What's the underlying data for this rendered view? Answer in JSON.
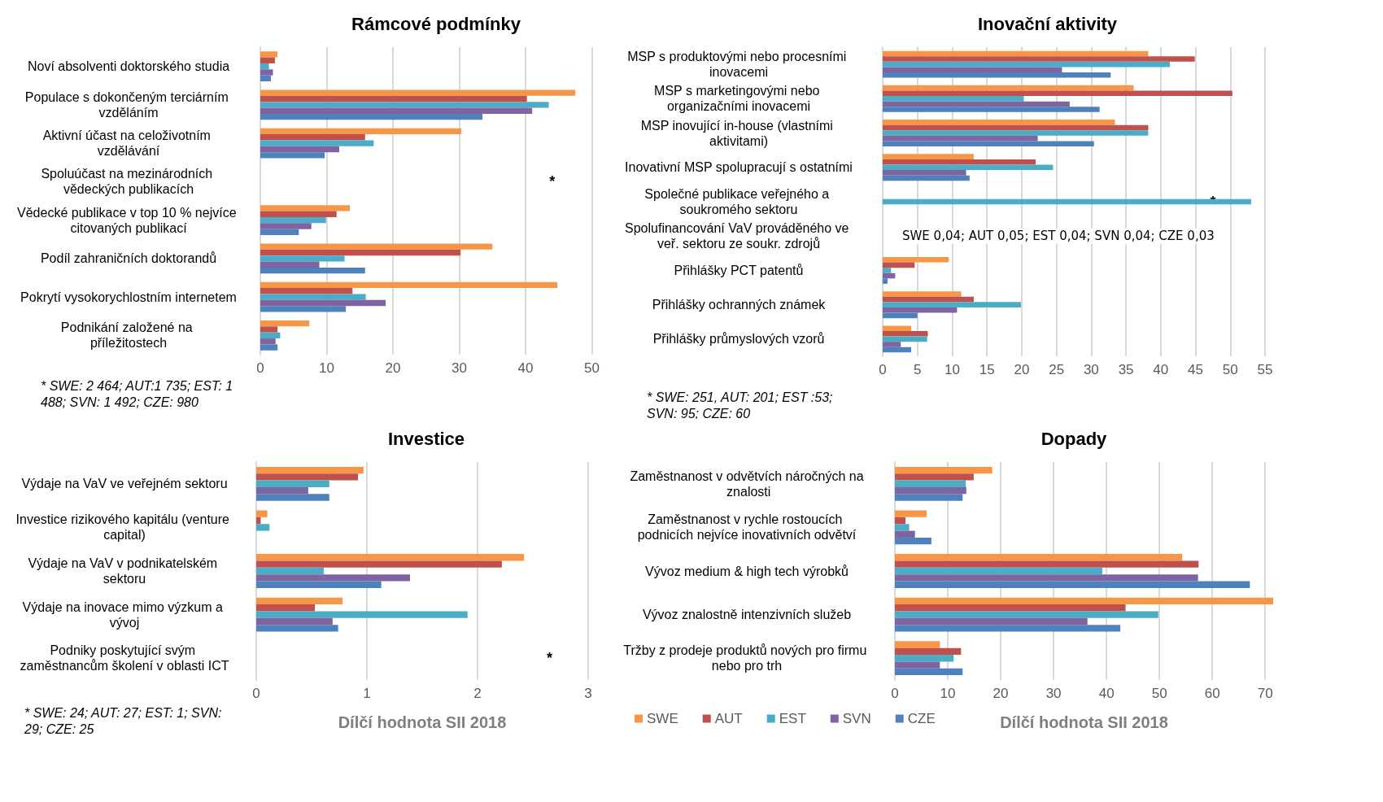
{
  "chart_data": [
    {
      "type": "bar",
      "orientation": "horizontal",
      "title": "Rámcové podmínky",
      "categories": [
        "Noví absolventi doktorského studia",
        "Populace s dokončeným terciárním vzděláním",
        "Aktivní účast na celoživotním vzdělávání",
        "Spoluúčast na mezinárodních vědeckých publikacích",
        "Vědecké publikace v top 10 % nejvíce citovaných publikací",
        "Podíl zahraničních doktorandů",
        "Pokrytí vysokorychlostním internetem",
        "Podnikání založené na příležitostech"
      ],
      "series": [
        {
          "color": "#f79646",
          "values": [
            2.6,
            47.5,
            30.3,
            null,
            13.5,
            35.0,
            44.8,
            7.4
          ]
        },
        {
          "color": "#c0504d",
          "values": [
            2.2,
            40.2,
            15.8,
            null,
            11.5,
            30.2,
            13.9,
            2.6
          ]
        },
        {
          "color": "#4bacc6",
          "values": [
            1.3,
            43.5,
            17.1,
            null,
            9.9,
            12.7,
            15.9,
            3.0
          ]
        },
        {
          "color": "#8064a2",
          "values": [
            1.9,
            41.0,
            11.9,
            null,
            7.7,
            8.9,
            18.9,
            2.3
          ]
        },
        {
          "color": "#4f81bd",
          "values": [
            1.6,
            33.5,
            9.7,
            null,
            5.8,
            15.8,
            12.9,
            2.6
          ]
        }
      ],
      "xlim": [
        0,
        50
      ],
      "xticks": [
        0,
        10,
        20,
        30,
        40,
        50
      ],
      "grid": "x",
      "annotations": [
        {
          "text": "*",
          "x": 44,
          "y": "Spoluúčast na mezinárodních vědeckých publikacích"
        },
        "* SWE: 2 464; AUT:1 735; EST: 1 488; SVN: 1 492; CZE: 980"
      ]
    },
    {
      "type": "bar",
      "orientation": "horizontal",
      "title": "Inovační aktivity",
      "categories": [
        "MSP s produktovými nebo procesními inovacemi",
        "MSP s marketingovými nebo organizačními inovacemi",
        "MSP inovující in-house (vlastními aktivitami)",
        "Inovativní MSP spolupracují s ostatními",
        "Společné publikace veřejného a soukromého sektoru",
        "Spolufinancování VaV prováděného ve veř. sektoru ze soukr. zdrojů",
        "Přihlášky PCT patentů",
        "Přihlášky ochranných známek",
        "Přihlášky průmyslových vzorů"
      ],
      "series": [
        {
          "color": "#f79646",
          "values": [
            38.2,
            36.1,
            33.4,
            13.1,
            null,
            null,
            9.5,
            11.3,
            4.1
          ]
        },
        {
          "color": "#c0504d",
          "values": [
            44.9,
            50.3,
            38.2,
            22.0,
            null,
            null,
            4.6,
            13.1,
            6.5
          ]
        },
        {
          "color": "#4bacc6",
          "values": [
            41.3,
            20.3,
            38.2,
            24.5,
            53,
            null,
            1.2,
            19.9,
            6.4
          ]
        },
        {
          "color": "#8064a2",
          "values": [
            25.8,
            26.9,
            22.3,
            12.0,
            null,
            null,
            1.8,
            10.7,
            2.6
          ]
        },
        {
          "color": "#4f81bd",
          "values": [
            32.8,
            31.2,
            30.4,
            12.5,
            null,
            null,
            0.7,
            5.0,
            4.1
          ]
        }
      ],
      "xlim": [
        0,
        55
      ],
      "xticks": [
        0,
        5,
        10,
        15,
        20,
        25,
        30,
        35,
        40,
        45,
        50,
        55
      ],
      "grid": "x",
      "annotations": [
        {
          "text": "*",
          "x": 47.5,
          "y": "Společné publikace veřejného a soukromého sektoru"
        },
        "SWE 0,04; AUT 0,05; EST 0,04; SVN 0,04; CZE 0,03",
        "* SWE: 251, AUT: 201; EST :53; SVN: 95; CZE: 60"
      ]
    },
    {
      "type": "bar",
      "orientation": "horizontal",
      "title": "Investice",
      "xlabel": "Dílčí hodnota SII 2018",
      "categories": [
        "Výdaje na VaV ve veřejném sektoru",
        "Investice rizikového kapitálu (venture capital)",
        "Výdaje na VaV v podnikatelském sektoru",
        "Výdaje na inovace mimo výzkum a vývoj",
        "Podniky poskytující svým zaměstnancům školení v oblasti ICT"
      ],
      "series": [
        {
          "color": "#f79646",
          "values": [
            0.97,
            0.1,
            2.42,
            0.78,
            null
          ]
        },
        {
          "color": "#c0504d",
          "values": [
            0.92,
            0.04,
            2.22,
            0.53,
            null
          ]
        },
        {
          "color": "#4bacc6",
          "values": [
            0.66,
            0.12,
            0.61,
            1.91,
            null
          ]
        },
        {
          "color": "#8064a2",
          "values": [
            0.47,
            0,
            1.39,
            0.69,
            null
          ]
        },
        {
          "color": "#4f81bd",
          "values": [
            0.66,
            0,
            1.13,
            0.74,
            null
          ]
        }
      ],
      "xlim": [
        0,
        3
      ],
      "xticks": [
        0,
        1,
        2,
        3
      ],
      "grid": "x",
      "annotations": [
        {
          "text": "*",
          "x": 2.65,
          "y": "Podniky poskytující svým zaměstnancům školení v oblasti ICT"
        },
        "* SWE: 24; AUT: 27; EST: 1; SVN: 29; CZE: 25"
      ]
    },
    {
      "type": "bar",
      "orientation": "horizontal",
      "title": "Dopady",
      "xlabel": "Dílčí hodnota SII 2018",
      "categories": [
        "Zaměstnanost v odvětvích náročných na znalosti",
        "Zaměstnanost v rychle rostoucích podnicích nejvíce inovativních odvětví",
        "Vývoz medium & high tech výrobků",
        "Vývoz znalostně intenzivních služeb",
        "Tržby z prodeje produktů nových pro firmu nebo pro trh"
      ],
      "series": [
        {
          "name": "SWE",
          "color": "#f79646",
          "values": [
            18.4,
            6.0,
            54.3,
            71.5,
            8.5
          ]
        },
        {
          "name": "AUT",
          "color": "#c0504d",
          "values": [
            14.9,
            2.0,
            57.4,
            43.6,
            12.5
          ]
        },
        {
          "name": "EST",
          "color": "#4bacc6",
          "values": [
            13.4,
            2.7,
            39.2,
            49.8,
            11.1
          ]
        },
        {
          "name": "SVN",
          "color": "#8064a2",
          "values": [
            13.5,
            3.8,
            57.3,
            36.4,
            8.5
          ]
        },
        {
          "name": "CZE",
          "color": "#4f81bd",
          "values": [
            12.8,
            6.9,
            67.1,
            42.6,
            12.8
          ]
        }
      ],
      "xlim": [
        0,
        71.5
      ],
      "xticks": [
        0,
        10,
        20,
        30,
        40,
        50,
        60,
        70
      ],
      "grid": "x",
      "legend": "bottom left"
    }
  ]
}
